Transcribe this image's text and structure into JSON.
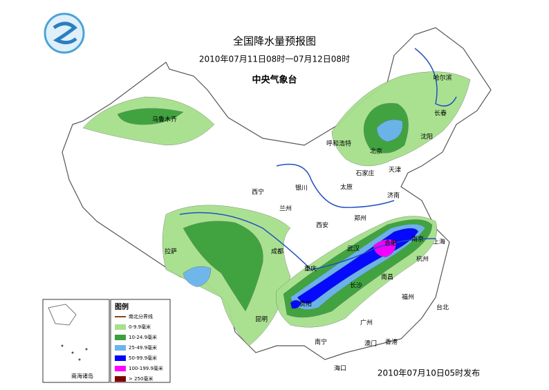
{
  "header": {
    "title": "全国降水量预报图",
    "subtitle": "2010年07月11日08时一07月12日08时",
    "publisher": "中央气象台"
  },
  "cities": [
    "乌鲁木齐",
    "哈尔滨",
    "长春",
    "沈阳",
    "呼和浩特",
    "北京",
    "天津",
    "石家庄",
    "太原",
    "济南",
    "西宁",
    "银川",
    "兰州",
    "郑州",
    "西安",
    "拉萨",
    "成都",
    "合肥",
    "南京",
    "上海",
    "武汉",
    "重庆",
    "杭州",
    "长沙",
    "南昌",
    "贵阳",
    "福州",
    "台北",
    "昆明",
    "广州",
    "南宁",
    "澳门",
    "香港",
    "海口"
  ],
  "legend": {
    "title": "图例",
    "items": [
      {
        "label": "南北分界线",
        "color": "#8b4513"
      },
      {
        "label": "0-9.9毫米",
        "color": "#a6e08c"
      },
      {
        "label": "10-24.9毫米",
        "color": "#3ca03c"
      },
      {
        "label": "25-49.9毫米",
        "color": "#6cb4f0"
      },
      {
        "label": "50-99.9毫米",
        "color": "#0000ff"
      },
      {
        "label": "100-199.9毫米",
        "color": "#ff00ff"
      },
      {
        "label": "> 250毫米",
        "color": "#800000"
      }
    ]
  },
  "inset_label": "南海诸岛",
  "issued": "2010年07月10日05时发布"
}
